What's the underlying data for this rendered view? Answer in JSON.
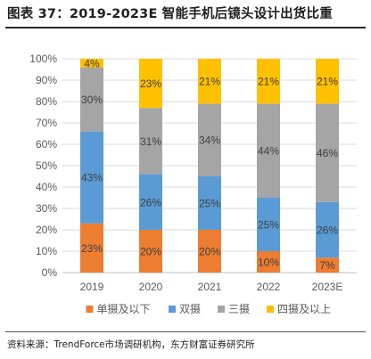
{
  "title": "图表 37：2019-2023E 智能手机后镜头设计出货比重",
  "source": "资料来源：TrendForce市场调研机构，东方财富证券研究所",
  "colors": {
    "single": "#ED7D31",
    "dual": "#5B9BD5",
    "triple": "#A5A5A5",
    "quad": "#FFC000",
    "label_dark": "#404040",
    "axis_text": "#595959",
    "grid": "#d9d9d9"
  },
  "chart_data": {
    "type": "bar",
    "stacked": true,
    "percent": true,
    "categories": [
      "2019",
      "2020",
      "2021",
      "2022",
      "2023E"
    ],
    "ylim": [
      0,
      100
    ],
    "yticks": [
      "0%",
      "10%",
      "20%",
      "30%",
      "40%",
      "50%",
      "60%",
      "70%",
      "80%",
      "90%",
      "100%"
    ],
    "grid": true,
    "legend_position": "bottom",
    "series": [
      {
        "name": "单摄及以下",
        "key": "single",
        "values": [
          23,
          20,
          20,
          10,
          7
        ]
      },
      {
        "name": "双摄",
        "key": "dual",
        "values": [
          43,
          26,
          25,
          25,
          26
        ]
      },
      {
        "name": "三摄",
        "key": "triple",
        "values": [
          30,
          31,
          34,
          44,
          46
        ]
      },
      {
        "name": "四摄及以上",
        "key": "quad",
        "values": [
          4,
          23,
          21,
          21,
          21
        ]
      }
    ]
  }
}
